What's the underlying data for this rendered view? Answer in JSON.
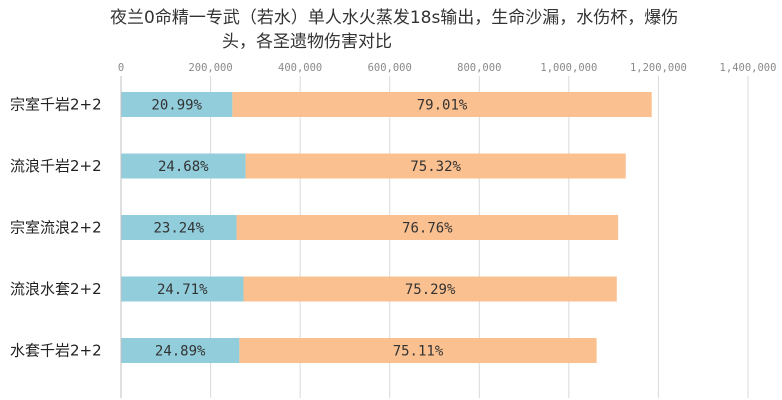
{
  "chart_data": {
    "type": "bar",
    "orientation": "horizontal",
    "stacked": true,
    "title_line1": "夜兰0命精一专武（若水）单人水火蒸发18s输出，生命沙漏，水伤杯，爆伤",
    "title_line2": "头，各圣遗物伤害对比",
    "xlim": [
      0,
      1400000
    ],
    "ticks": [
      0,
      200000,
      400000,
      600000,
      800000,
      1000000,
      1200000,
      1400000
    ],
    "tick_labels": [
      "0",
      "200,000",
      "400,000",
      "600,000",
      "800,000",
      "1,000,000",
      "1,200,000",
      "1,400,000"
    ],
    "grid": true,
    "categories": [
      "宗室千岩2+2",
      "流浪千岩2+2",
      "宗室流浪2+2",
      "流浪水套2+2",
      "水套千岩2+2"
    ],
    "totals": [
      1185000,
      1127000,
      1110000,
      1107000,
      1062000
    ],
    "series": [
      {
        "color": "#92cddc",
        "percent_labels": [
          "20.99%",
          "24.68%",
          "23.24%",
          "24.71%",
          "24.89%"
        ],
        "share": [
          0.2099,
          0.2468,
          0.2324,
          0.2471,
          0.2489
        ]
      },
      {
        "color": "#fac090",
        "percent_labels": [
          "79.01%",
          "75.32%",
          "76.76%",
          "75.29%",
          "75.11%"
        ],
        "share": [
          0.7901,
          0.7532,
          0.7676,
          0.7529,
          0.7511
        ]
      }
    ]
  }
}
